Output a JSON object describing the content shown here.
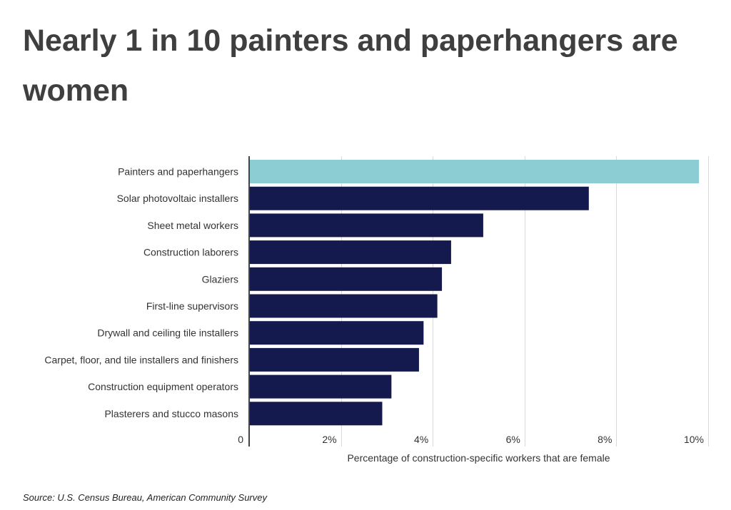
{
  "title": "Nearly 1 in 10 painters and paperhangers are women",
  "source": "Source:  U.S. Census Bureau, American Community Survey",
  "colors": {
    "highlight": "#8ccdd3",
    "bar": "#141a4d",
    "grid": "#d9d9d9",
    "axis": "#444444",
    "text": "#333333"
  },
  "chart_data": {
    "type": "bar",
    "orientation": "horizontal",
    "categories": [
      "Painters and paperhangers",
      "Solar photovoltaic installers",
      "Sheet metal workers",
      "Construction laborers",
      "Glaziers",
      "First-line supervisors",
      "Drywall and ceiling tile installers",
      "Carpet, floor, and tile installers and finishers",
      "Construction equipment operators",
      "Plasterers and stucco masons"
    ],
    "values": [
      9.8,
      7.4,
      5.1,
      4.4,
      4.2,
      4.1,
      3.8,
      3.7,
      3.1,
      2.9
    ],
    "highlight_index": 0,
    "xlabel": "Percentage of construction-specific workers that are female",
    "ylabel": "",
    "xlim": [
      0,
      10
    ],
    "xticks": [
      0,
      2,
      4,
      6,
      8,
      10
    ],
    "xtick_labels": [
      "0",
      "2%",
      "4%",
      "6%",
      "8%",
      "10%"
    ],
    "grid": true
  }
}
